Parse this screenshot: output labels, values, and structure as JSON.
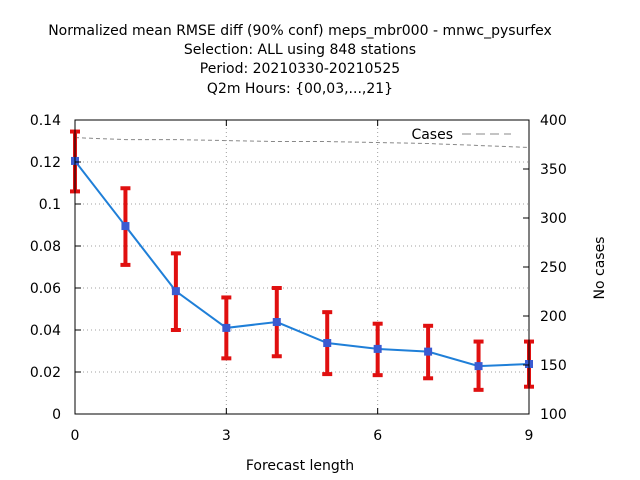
{
  "title_lines": [
    "Normalized mean RMSE diff (90% conf) meps_mbr000 - mnwc_pysurfex",
    "Selection: ALL using   848 stations",
    "Period: 20210330-20210525",
    "Q2m   Hours: {00,03,...,21}"
  ],
  "chart_data": {
    "type": "line",
    "xlabel": "Forecast length",
    "ylabel": "",
    "y2label": "No cases",
    "xlim": [
      0,
      9
    ],
    "ylim": [
      0,
      0.14
    ],
    "y2lim": [
      100,
      400
    ],
    "xticks": [
      0,
      3,
      6,
      9
    ],
    "yticks": [
      0,
      0.02,
      0.04,
      0.06,
      0.08,
      0.1,
      0.12,
      0.14
    ],
    "y2ticks": [
      100,
      150,
      200,
      250,
      300,
      350,
      400
    ],
    "xtick_labels": [
      "0",
      "3",
      "6",
      "9"
    ],
    "ytick_labels": [
      "0",
      "0.02",
      "0.04",
      "0.06",
      "0.08",
      "0.1",
      "0.12",
      "0.14"
    ],
    "y2tick_labels": [
      "100",
      "150",
      "200",
      "250",
      "300",
      "350",
      "400"
    ],
    "grid": true,
    "legend": "top-right",
    "colors": {
      "line": "#1f7fd8",
      "point": "#3b5bd1",
      "error": "#e01010",
      "cases": "#888888",
      "grid": "#a0a0a0"
    },
    "series": [
      {
        "x": [
          0,
          1,
          2,
          3,
          4,
          5,
          6,
          7,
          8,
          9
        ],
        "values": [
          0.1205,
          0.0895,
          0.0585,
          0.041,
          0.0438,
          0.0338,
          0.031,
          0.0297,
          0.0228,
          0.0238
        ],
        "err_low": [
          0.106,
          0.071,
          0.04,
          0.0265,
          0.0275,
          0.019,
          0.0185,
          0.017,
          0.0115,
          0.013
        ],
        "err_high": [
          0.1345,
          0.1075,
          0.0765,
          0.0555,
          0.06,
          0.0485,
          0.043,
          0.042,
          0.0345,
          0.0345
        ]
      },
      {
        "name": "Cases",
        "axis": "right",
        "x": [
          0,
          1,
          2,
          3,
          4,
          5,
          6,
          7,
          8,
          9
        ],
        "values": [
          382,
          380,
          380,
          379,
          378,
          378,
          377,
          376,
          374,
          372
        ]
      }
    ]
  }
}
